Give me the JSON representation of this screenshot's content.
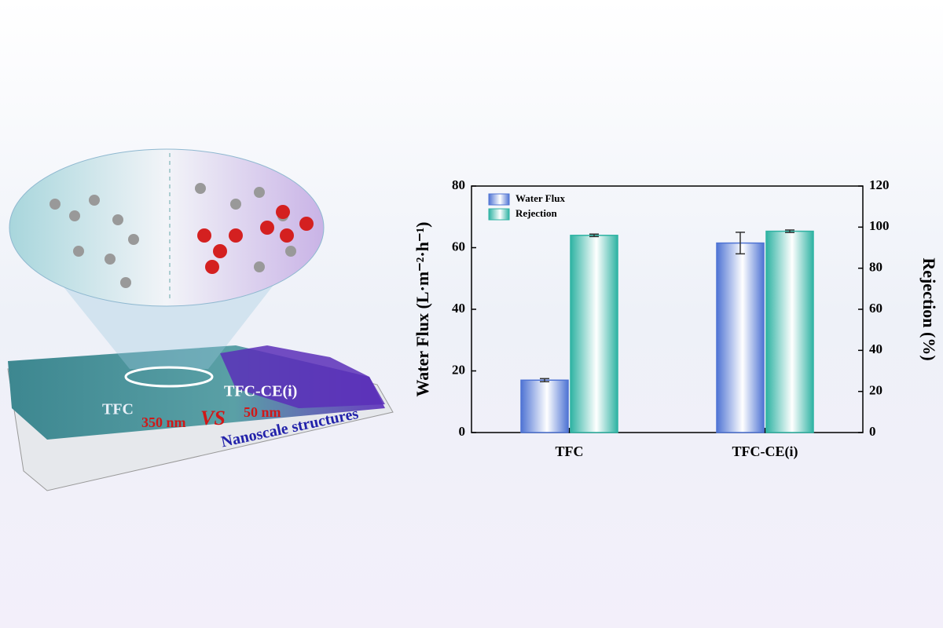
{
  "chart_data": {
    "type": "bar",
    "categories": [
      "TFC",
      "TFC-CE(i)"
    ],
    "series": [
      {
        "name": "Water Flux",
        "color": "#4f74d4",
        "values": [
          17,
          61.5
        ],
        "errors": [
          0.5,
          3.5
        ]
      },
      {
        "name": "Rejection",
        "color": "#2fb3a3",
        "values": [
          96,
          98
        ],
        "errors": [
          0.6,
          0.6
        ],
        "axis": "y2"
      }
    ],
    "ylabel": "Water Flux (L·m⁻²·h⁻¹)",
    "y2label": "Rejection (%)",
    "ylim": [
      0,
      80
    ],
    "yticks": [
      0,
      20,
      40,
      60,
      80
    ],
    "y2lim": [
      0,
      120
    ],
    "y2ticks": [
      0,
      20,
      40,
      60,
      80,
      100,
      120
    ],
    "legend": "upper left",
    "annotations": [
      "TFC",
      "TFC-CE(i)",
      "350 nm",
      "VS",
      "50 nm",
      "Nanoscale structures"
    ]
  }
}
